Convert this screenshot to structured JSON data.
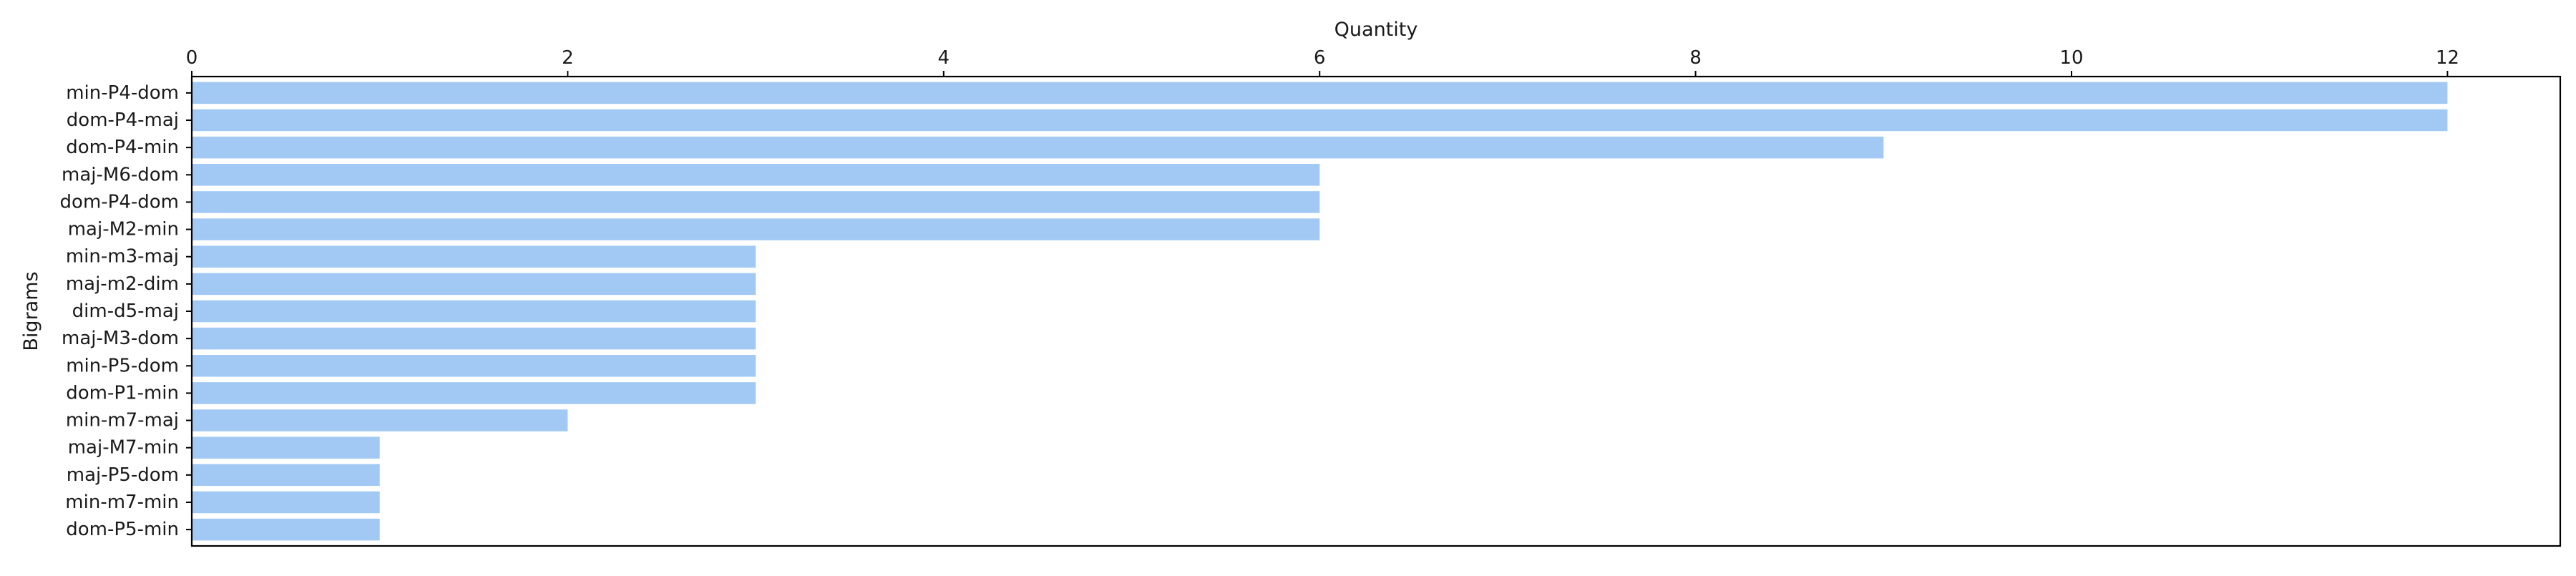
{
  "chart_data": {
    "type": "bar",
    "orientation": "horizontal",
    "xlabel": "Quantity",
    "ylabel": "Bigrams",
    "xlim": [
      0,
      12.6
    ],
    "x_ticks": [
      "0",
      "2",
      "4",
      "6",
      "8",
      "10",
      "12"
    ],
    "x_axis_position": "top",
    "grid": false,
    "bar_color": "#a1c9f4",
    "categories": [
      "min-P4-dom",
      "dom-P4-maj",
      "dom-P4-min",
      "maj-M6-dom",
      "dom-P4-dom",
      "maj-M2-min",
      "min-m3-maj",
      "maj-m2-dim",
      "dim-d5-maj",
      "maj-M3-dom",
      "min-P5-dom",
      "dom-P1-min",
      "min-m7-maj",
      "maj-M7-min",
      "maj-P5-dom",
      "min-m7-min",
      "dom-P5-min"
    ],
    "values": [
      12,
      12,
      9,
      6,
      6,
      6,
      3,
      3,
      3,
      3,
      3,
      3,
      2,
      1,
      1,
      1,
      1
    ]
  }
}
